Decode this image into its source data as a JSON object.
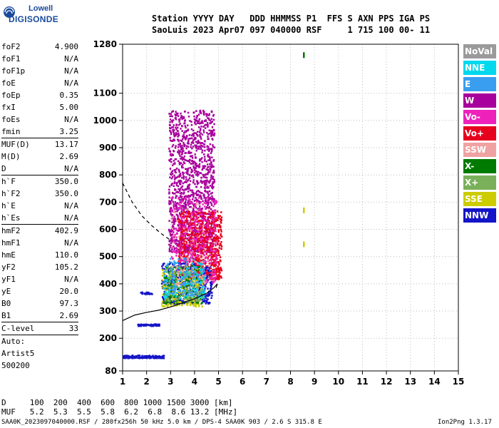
{
  "logo": {
    "top": "Lowell",
    "bottom": "DIGISONDE"
  },
  "header": {
    "line1": "Station YYYY DAY   DDD HHMMSS P1  FFS S AXN PPS IGA PS",
    "line2": "SaoLuis 2023 Apr07 097 040000 RSF     1 715 100 00- 11"
  },
  "params": {
    "group1": [
      [
        "foF2",
        "4.900"
      ],
      [
        "foF1",
        "N/A"
      ],
      [
        "foF1p",
        "N/A"
      ],
      [
        "foE",
        "N/A"
      ],
      [
        "foEp",
        "0.35"
      ],
      [
        "fxI",
        "5.00"
      ],
      [
        "foEs",
        "N/A"
      ],
      [
        "fmin",
        "3.25"
      ]
    ],
    "group2": [
      [
        "MUF(D)",
        "13.17"
      ],
      [
        "M(D)",
        "2.69"
      ],
      [
        "D",
        "N/A"
      ]
    ],
    "group3": [
      [
        "h`F",
        "350.0"
      ],
      [
        "h`F2",
        "350.0"
      ],
      [
        "h`E",
        "N/A"
      ],
      [
        "h`Es",
        "N/A"
      ]
    ],
    "group4": [
      [
        "hmF2",
        "402.9"
      ],
      [
        "hmF1",
        "N/A"
      ],
      [
        "hmE",
        "110.0"
      ],
      [
        "yF2",
        "105.2"
      ],
      [
        "yF1",
        "N/A"
      ],
      [
        "yE",
        "20.0"
      ],
      [
        "B0",
        "97.3"
      ],
      [
        "B1",
        "2.69"
      ]
    ],
    "group5": [
      [
        "C-level",
        "33"
      ]
    ],
    "auto": [
      "Auto:",
      "Artist5",
      "500200"
    ]
  },
  "legend": [
    {
      "label": "NoVal",
      "color": "#9a9a9a"
    },
    {
      "label": "NNE",
      "color": "#00d8ee"
    },
    {
      "label": "E",
      "color": "#3a9ef0"
    },
    {
      "label": "W",
      "color": "#a8009c"
    },
    {
      "label": "Vo-",
      "color": "#ee22bb"
    },
    {
      "label": "Vo+",
      "color": "#e6001e"
    },
    {
      "label": "SSW",
      "color": "#f0a2a2"
    },
    {
      "label": "X-",
      "color": "#007a00"
    },
    {
      "label": "X+",
      "color": "#7ab05a"
    },
    {
      "label": "SSE",
      "color": "#cccc00"
    },
    {
      "label": "NNW",
      "color": "#1414c8"
    }
  ],
  "footer": {
    "d_row": "D     100  200  400  600  800 1000 1500 3000 [km]",
    "muf_row": "MUF   5.2  5.3  5.5  5.8  6.2  6.8  8.6 13.2 [MHz]",
    "file": "SAA0K_2023097040000.RSF / 280fx256h 50 kHz 5.0 km / DPS-4 SAA0K 903 / 2.6 S 315.8 E",
    "version": "Ion2Png 1.3.17"
  },
  "chart_data": {
    "type": "scatter",
    "title": "",
    "xlabel": "",
    "ylabel": "",
    "xlim": [
      1,
      15
    ],
    "ylim": [
      80,
      1280
    ],
    "x_ticks": [
      1,
      2,
      3,
      4,
      5,
      6,
      7,
      8,
      9,
      10,
      11,
      12,
      13,
      14,
      15
    ],
    "y_ticks": [
      80,
      200,
      300,
      400,
      500,
      600,
      700,
      800,
      900,
      1000,
      1100,
      1280
    ],
    "grid": true,
    "profile_curve": [
      [
        1,
        265
      ],
      [
        1.5,
        285
      ],
      [
        2,
        295
      ],
      [
        2.5,
        303
      ],
      [
        3,
        315
      ],
      [
        3.5,
        330
      ],
      [
        4,
        345
      ],
      [
        4.5,
        365
      ],
      [
        4.8,
        385
      ],
      [
        4.95,
        400
      ],
      [
        4.9,
        385
      ]
    ],
    "dashed_curve": [
      [
        1,
        770
      ],
      [
        1.4,
        700
      ],
      [
        1.8,
        650
      ],
      [
        2.2,
        615
      ],
      [
        2.6,
        585
      ],
      [
        3.0,
        560
      ]
    ],
    "clusters": [
      {
        "color": "#a8009c",
        "xmin": 2.9,
        "xmax": 4.8,
        "hmin": 520,
        "hmax": 1040,
        "n": 1500
      },
      {
        "color": "#e6001e",
        "xmin": 3.3,
        "xmax": 5.1,
        "hmin": 420,
        "hmax": 670,
        "n": 900
      },
      {
        "color": "#ee22bb",
        "xmin": 3.0,
        "xmax": 4.9,
        "hmin": 400,
        "hmax": 720,
        "n": 400
      },
      {
        "color": "#1414c8",
        "xmin": 2.6,
        "xmax": 4.7,
        "hmin": 330,
        "hmax": 480,
        "n": 400
      },
      {
        "color": "#cccc00",
        "xmin": 2.6,
        "xmax": 4.3,
        "hmin": 320,
        "hmax": 460,
        "n": 250
      },
      {
        "color": "#007a00",
        "xmin": 2.7,
        "xmax": 4.3,
        "hmin": 330,
        "hmax": 470,
        "n": 180
      },
      {
        "color": "#7ab05a",
        "xmin": 2.7,
        "xmax": 4.4,
        "hmin": 340,
        "hmax": 470,
        "n": 150
      },
      {
        "color": "#00d8ee",
        "xmin": 2.7,
        "xmax": 4.4,
        "hmin": 350,
        "hmax": 480,
        "n": 120
      },
      {
        "color": "#3a9ef0",
        "xmin": 2.7,
        "xmax": 4.4,
        "hmin": 360,
        "hmax": 500,
        "n": 120
      },
      {
        "color": "#f0a2a2",
        "xmin": 3.0,
        "xmax": 4.6,
        "hmin": 400,
        "hmax": 700,
        "n": 80
      },
      {
        "color": "#1414c8",
        "xmin": 1.0,
        "xmax": 2.7,
        "hmin": 130,
        "hmax": 140,
        "n": 140
      },
      {
        "color": "#1414c8",
        "xmin": 1.6,
        "xmax": 2.5,
        "hmin": 248,
        "hmax": 255,
        "n": 60
      },
      {
        "color": "#1414c8",
        "xmin": 1.7,
        "xmax": 2.2,
        "hmin": 365,
        "hmax": 372,
        "n": 25
      }
    ],
    "isolated_points": [
      [
        8.55,
        1240,
        "#007a00"
      ],
      [
        8.55,
        545,
        "#cccc00"
      ],
      [
        8.55,
        670,
        "#cccc00"
      ]
    ]
  }
}
